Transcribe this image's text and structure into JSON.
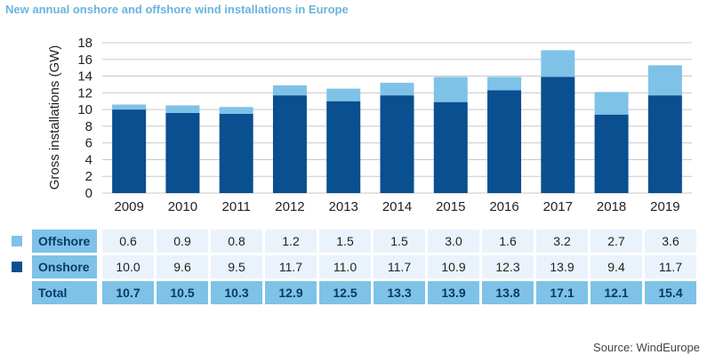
{
  "title": "New annual onshore and offshore wind installations in Europe",
  "source": "Source: WindEurope",
  "colors": {
    "onshore": "#0a4f8f",
    "offshore": "#7ec2e8",
    "cell": "#eaf3fb",
    "total_row": "#7ec2e8",
    "title": "#6ab4dc",
    "grid": "#c8c8c8"
  },
  "chart_data": {
    "type": "bar",
    "stacked": true,
    "categories": [
      "2009",
      "2010",
      "2011",
      "2012",
      "2013",
      "2014",
      "2015",
      "2016",
      "2017",
      "2018",
      "2019"
    ],
    "series": [
      {
        "name": "Onshore",
        "values": [
          10.0,
          9.6,
          9.5,
          11.7,
          11.0,
          11.7,
          10.9,
          12.3,
          13.9,
          9.4,
          11.7
        ]
      },
      {
        "name": "Offshore",
        "values": [
          0.6,
          0.9,
          0.8,
          1.2,
          1.5,
          1.5,
          3.0,
          1.6,
          3.2,
          2.7,
          3.6
        ]
      }
    ],
    "ylabel": "Gross installations (GW)",
    "xlabel": "",
    "ylim": [
      0,
      18
    ],
    "yticks": [
      0,
      2,
      4,
      6,
      8,
      10,
      12,
      14,
      16,
      18
    ],
    "grid": true,
    "table": {
      "rows": [
        {
          "label": "Offshore",
          "values": [
            "0.6",
            "0.9",
            "0.8",
            "1.2",
            "1.5",
            "1.5",
            "3.0",
            "1.6",
            "3.2",
            "2.7",
            "3.6"
          ]
        },
        {
          "label": "Onshore",
          "values": [
            "10.0",
            "9.6",
            "9.5",
            "11.7",
            "11.0",
            "11.7",
            "10.9",
            "12.3",
            "13.9",
            "9.4",
            "11.7"
          ]
        },
        {
          "label": "Total",
          "values": [
            "10.7",
            "10.5",
            "10.3",
            "12.9",
            "12.5",
            "13.3",
            "13.9",
            "13.8",
            "17.1",
            "12.1",
            "15.4"
          ]
        }
      ]
    }
  }
}
